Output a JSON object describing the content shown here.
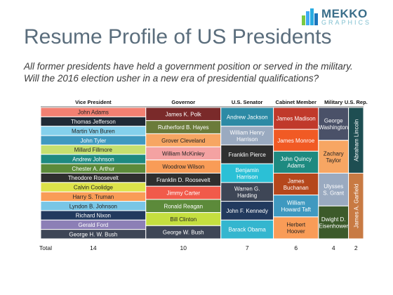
{
  "logo": {
    "word": "MEKKO",
    "sub": "GRAPHICS",
    "colors": [
      "#7ac943",
      "#3fa9f5",
      "#29abe2",
      "#1b75bc"
    ]
  },
  "header": {
    "title": "Resume Profile of US Presidents",
    "subtitle_line1": "All former presidents have held a government position or served in the military.",
    "subtitle_line2": "Will the 2016 election usher in a new era of presidential qualifications?"
  },
  "chart_data": {
    "type": "mekko",
    "total_label": "Total",
    "columns": [
      {
        "label": "Vice President",
        "total": "14",
        "segments": [
          {
            "name": "John Adams",
            "color": "#f28072"
          },
          {
            "name": "Thomas Jefferson",
            "color": "#1f2a36"
          },
          {
            "name": "Martin Van Buren",
            "color": "#84d0ec"
          },
          {
            "name": "John Tyler",
            "color": "#3f99c0"
          },
          {
            "name": "Millard Fillmore",
            "color": "#c5df6f"
          },
          {
            "name": "Andrew Johnson",
            "color": "#1e8a80"
          },
          {
            "name": "Chester A. Arthur",
            "color": "#5c8a3a"
          },
          {
            "name": "Theodore Roosevelt",
            "color": "#2f2f2f"
          },
          {
            "name": "Calvin Coolidge",
            "color": "#dde34a"
          },
          {
            "name": "Harry S. Truman",
            "color": "#f99c57"
          },
          {
            "name": "Lyndon B. Johnson",
            "color": "#79c6e6"
          },
          {
            "name": "Richard Nixon",
            "color": "#223a5e"
          },
          {
            "name": "Gerald Ford",
            "color": "#8c7fb6"
          },
          {
            "name": "George H. W. Bush",
            "color": "#3e4656"
          }
        ]
      },
      {
        "label": "Governor",
        "total": "10",
        "segments": [
          {
            "name": "James K. Polk",
            "color": "#7a2a2a"
          },
          {
            "name": "Rutherford B. Hayes",
            "color": "#6b7b3a"
          },
          {
            "name": "Grover Cleveland",
            "color": "#f7a663"
          },
          {
            "name": "William McKinley",
            "color": "#f4a2a2"
          },
          {
            "name": "Woodrow Wilson",
            "color": "#f99c57"
          },
          {
            "name": "Franklin D. Roosevelt",
            "color": "#2f2f2f"
          },
          {
            "name": "Jimmy Carter",
            "color": "#f15a4a"
          },
          {
            "name": "Ronald Reagan",
            "color": "#5c8a3a"
          },
          {
            "name": "Bill Clinton",
            "color": "#c5df3f"
          },
          {
            "name": "George W. Bush",
            "color": "#3e4656"
          }
        ]
      },
      {
        "label": "U.S. Senator",
        "total": "7",
        "segments": [
          {
            "name": "Andrew Jackson",
            "color": "#2d8aa5"
          },
          {
            "name": "William Henry Harrison",
            "color": "#9aaac0"
          },
          {
            "name": "Franklin Pierce",
            "color": "#2f2f2f"
          },
          {
            "name": "Benjamin Harrison",
            "color": "#2bc0d6"
          },
          {
            "name": "Warren G. Harding",
            "color": "#3e4656"
          },
          {
            "name": "John F. Kennedy",
            "color": "#223a5e"
          },
          {
            "name": "Barack Obama",
            "color": "#34b6cf"
          }
        ]
      },
      {
        "label": "Cabinet Member",
        "total": "6",
        "segments": [
          {
            "name": "James Madison",
            "color": "#c0392b"
          },
          {
            "name": "James Monroe",
            "color": "#f15a24"
          },
          {
            "name": "John Quincy Adams",
            "color": "#1e8a80"
          },
          {
            "name": "James Buchanan",
            "color": "#b5471c"
          },
          {
            "name": "William Howard Taft",
            "color": "#3f99c0"
          },
          {
            "name": "Herbert Hoover",
            "color": "#f99c57"
          }
        ]
      },
      {
        "label": "Military",
        "total": "4",
        "segments": [
          {
            "name": "George Washington",
            "color": "#4a5168"
          },
          {
            "name": "Zachary Taylor",
            "color": "#f7a663"
          },
          {
            "name": "Ulysses S. Grant",
            "color": "#9aaac0"
          },
          {
            "name": "Dwight D. Eisenhower",
            "color": "#3c5a2a"
          }
        ]
      },
      {
        "label": "U.S. Rep.",
        "total": "2",
        "segments": [
          {
            "name": "Abraham Lincoln",
            "color": "#1e4e52"
          },
          {
            "name": "James A. Garfield",
            "color": "#c87a43"
          }
        ]
      }
    ]
  }
}
